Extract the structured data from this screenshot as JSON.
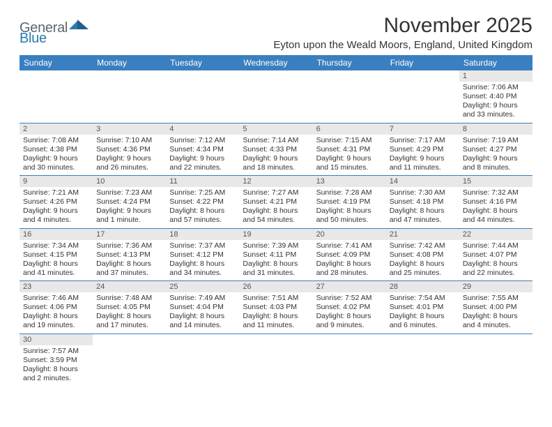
{
  "logo": {
    "general": "General",
    "blue": "Blue"
  },
  "title": "November 2025",
  "location": "Eyton upon the Weald Moors, England, United Kingdom",
  "headers": [
    "Sunday",
    "Monday",
    "Tuesday",
    "Wednesday",
    "Thursday",
    "Friday",
    "Saturday"
  ],
  "colors": {
    "header_bg": "#3a7fbf",
    "header_fg": "#ffffff",
    "daynum_bg": "#e8e8e8",
    "row_border": "#3a7fbf",
    "logo_gray": "#5a6770",
    "logo_blue": "#2a7ab0"
  },
  "weeks": [
    [
      null,
      null,
      null,
      null,
      null,
      null,
      {
        "n": "1",
        "sr": "7:06 AM",
        "ss": "4:40 PM",
        "dl": "9 hours\nand 33 minutes."
      }
    ],
    [
      {
        "n": "2",
        "sr": "7:08 AM",
        "ss": "4:38 PM",
        "dl": "9 hours\nand 30 minutes."
      },
      {
        "n": "3",
        "sr": "7:10 AM",
        "ss": "4:36 PM",
        "dl": "9 hours\nand 26 minutes."
      },
      {
        "n": "4",
        "sr": "7:12 AM",
        "ss": "4:34 PM",
        "dl": "9 hours\nand 22 minutes."
      },
      {
        "n": "5",
        "sr": "7:14 AM",
        "ss": "4:33 PM",
        "dl": "9 hours\nand 18 minutes."
      },
      {
        "n": "6",
        "sr": "7:15 AM",
        "ss": "4:31 PM",
        "dl": "9 hours\nand 15 minutes."
      },
      {
        "n": "7",
        "sr": "7:17 AM",
        "ss": "4:29 PM",
        "dl": "9 hours\nand 11 minutes."
      },
      {
        "n": "8",
        "sr": "7:19 AM",
        "ss": "4:27 PM",
        "dl": "9 hours\nand 8 minutes."
      }
    ],
    [
      {
        "n": "9",
        "sr": "7:21 AM",
        "ss": "4:26 PM",
        "dl": "9 hours\nand 4 minutes."
      },
      {
        "n": "10",
        "sr": "7:23 AM",
        "ss": "4:24 PM",
        "dl": "9 hours\nand 1 minute."
      },
      {
        "n": "11",
        "sr": "7:25 AM",
        "ss": "4:22 PM",
        "dl": "8 hours\nand 57 minutes."
      },
      {
        "n": "12",
        "sr": "7:27 AM",
        "ss": "4:21 PM",
        "dl": "8 hours\nand 54 minutes."
      },
      {
        "n": "13",
        "sr": "7:28 AM",
        "ss": "4:19 PM",
        "dl": "8 hours\nand 50 minutes."
      },
      {
        "n": "14",
        "sr": "7:30 AM",
        "ss": "4:18 PM",
        "dl": "8 hours\nand 47 minutes."
      },
      {
        "n": "15",
        "sr": "7:32 AM",
        "ss": "4:16 PM",
        "dl": "8 hours\nand 44 minutes."
      }
    ],
    [
      {
        "n": "16",
        "sr": "7:34 AM",
        "ss": "4:15 PM",
        "dl": "8 hours\nand 41 minutes."
      },
      {
        "n": "17",
        "sr": "7:36 AM",
        "ss": "4:13 PM",
        "dl": "8 hours\nand 37 minutes."
      },
      {
        "n": "18",
        "sr": "7:37 AM",
        "ss": "4:12 PM",
        "dl": "8 hours\nand 34 minutes."
      },
      {
        "n": "19",
        "sr": "7:39 AM",
        "ss": "4:11 PM",
        "dl": "8 hours\nand 31 minutes."
      },
      {
        "n": "20",
        "sr": "7:41 AM",
        "ss": "4:09 PM",
        "dl": "8 hours\nand 28 minutes."
      },
      {
        "n": "21",
        "sr": "7:42 AM",
        "ss": "4:08 PM",
        "dl": "8 hours\nand 25 minutes."
      },
      {
        "n": "22",
        "sr": "7:44 AM",
        "ss": "4:07 PM",
        "dl": "8 hours\nand 22 minutes."
      }
    ],
    [
      {
        "n": "23",
        "sr": "7:46 AM",
        "ss": "4:06 PM",
        "dl": "8 hours\nand 19 minutes."
      },
      {
        "n": "24",
        "sr": "7:48 AM",
        "ss": "4:05 PM",
        "dl": "8 hours\nand 17 minutes."
      },
      {
        "n": "25",
        "sr": "7:49 AM",
        "ss": "4:04 PM",
        "dl": "8 hours\nand 14 minutes."
      },
      {
        "n": "26",
        "sr": "7:51 AM",
        "ss": "4:03 PM",
        "dl": "8 hours\nand 11 minutes."
      },
      {
        "n": "27",
        "sr": "7:52 AM",
        "ss": "4:02 PM",
        "dl": "8 hours\nand 9 minutes."
      },
      {
        "n": "28",
        "sr": "7:54 AM",
        "ss": "4:01 PM",
        "dl": "8 hours\nand 6 minutes."
      },
      {
        "n": "29",
        "sr": "7:55 AM",
        "ss": "4:00 PM",
        "dl": "8 hours\nand 4 minutes."
      }
    ],
    [
      {
        "n": "30",
        "sr": "7:57 AM",
        "ss": "3:59 PM",
        "dl": "8 hours\nand 2 minutes."
      },
      null,
      null,
      null,
      null,
      null,
      null
    ]
  ]
}
